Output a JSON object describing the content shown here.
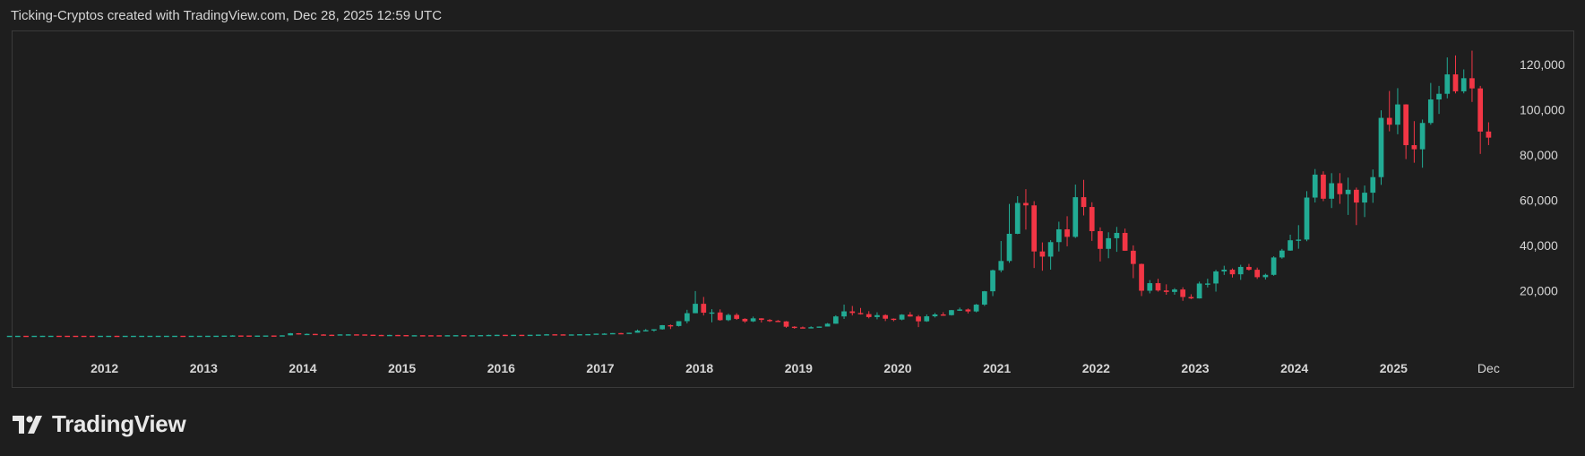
{
  "header": {
    "caption": "Ticking-Cryptos created with TradingView.com, Dec 28, 2025 12:59 UTC"
  },
  "brand": {
    "name": "TradingView"
  },
  "colors": {
    "background": "#1e1e1e",
    "up": "#22ab94",
    "down": "#f23645",
    "grid_text": "#d6d6d6",
    "border": "#3a3a3a"
  },
  "chart_data": {
    "type": "candlestick",
    "interval": "monthly",
    "ylim": [
      -8000,
      128000
    ],
    "y_ticks": [
      20000,
      40000,
      60000,
      80000,
      100000,
      120000
    ],
    "y_tick_labels": [
      "20,000",
      "40,000",
      "60,000",
      "80,000",
      "100,000",
      "120,000"
    ],
    "x_tick_labels": [
      "2012",
      "2013",
      "2014",
      "2015",
      "2016",
      "2017",
      "2018",
      "2019",
      "2020",
      "2021",
      "2022",
      "2023",
      "2024",
      "2025",
      "Dec"
    ],
    "x_start": "2011-01",
    "x_end": "2025-12",
    "candles": [
      [
        "2011-01",
        0.3,
        0.5,
        0.3,
        0.4
      ],
      [
        "2011-02",
        0.4,
        1.0,
        0.4,
        0.9
      ],
      [
        "2011-03",
        0.9,
        1.0,
        0.7,
        0.8
      ],
      [
        "2011-04",
        0.8,
        4.0,
        0.6,
        3.5
      ],
      [
        "2011-05",
        3.5,
        9.0,
        3.0,
        8.7
      ],
      [
        "2011-06",
        8.7,
        32,
        8.0,
        16
      ],
      [
        "2011-07",
        16,
        16,
        13,
        13
      ],
      [
        "2011-08",
        13,
        13,
        7,
        8
      ],
      [
        "2011-09",
        8,
        8,
        5,
        5
      ],
      [
        "2011-10",
        5,
        5,
        2,
        3.2
      ],
      [
        "2011-11",
        3.2,
        3.2,
        2,
        3
      ],
      [
        "2011-12",
        3,
        4.5,
        2.8,
        4.7
      ],
      [
        "2012-01",
        4.7,
        7,
        4.5,
        5.5
      ],
      [
        "2012-02",
        5.5,
        6,
        4.3,
        4.9
      ],
      [
        "2012-03",
        4.9,
        5.3,
        4.6,
        4.9
      ],
      [
        "2012-04",
        4.9,
        5.2,
        4.7,
        5.0
      ],
      [
        "2012-05",
        5.0,
        5.3,
        4.9,
        5.2
      ],
      [
        "2012-06",
        5.2,
        6.7,
        5.2,
        6.7
      ],
      [
        "2012-07",
        6.7,
        9.5,
        6.6,
        9.4
      ],
      [
        "2012-08",
        9.4,
        15,
        8,
        10
      ],
      [
        "2012-09",
        10,
        12.5,
        10,
        12.4
      ],
      [
        "2012-10",
        12.4,
        13,
        10,
        11.2
      ],
      [
        "2012-11",
        11.2,
        12.5,
        10,
        12.5
      ],
      [
        "2012-12",
        12.5,
        13.7,
        12.5,
        13.5
      ],
      [
        "2013-01",
        13.5,
        21,
        13,
        20.4
      ],
      [
        "2013-02",
        20.4,
        33,
        19,
        33
      ],
      [
        "2013-03",
        33,
        95,
        33,
        93
      ],
      [
        "2013-04",
        93,
        266,
        50,
        139
      ],
      [
        "2013-05",
        139,
        140,
        94,
        129
      ],
      [
        "2013-06",
        129,
        129,
        88,
        97
      ],
      [
        "2013-07",
        97,
        111,
        65,
        106
      ],
      [
        "2013-08",
        106,
        135,
        99,
        135
      ],
      [
        "2013-09",
        135,
        146,
        106,
        133
      ],
      [
        "2013-10",
        133,
        211,
        102,
        204
      ],
      [
        "2013-11",
        204,
        1242,
        204,
        1129
      ],
      [
        "2013-12",
        1129,
        1175,
        550,
        755
      ],
      [
        "2014-01",
        755,
        1000,
        750,
        838
      ],
      [
        "2014-02",
        838,
        860,
        425,
        573
      ],
      [
        "2014-03",
        573,
        720,
        438,
        457
      ],
      [
        "2014-04",
        457,
        550,
        340,
        448
      ],
      [
        "2014-05",
        448,
        630,
        420,
        628
      ],
      [
        "2014-06",
        628,
        680,
        550,
        640
      ],
      [
        "2014-07",
        640,
        650,
        566,
        589
      ],
      [
        "2014-08",
        589,
        597,
        464,
        478
      ],
      [
        "2014-09",
        478,
        494,
        375,
        387
      ],
      [
        "2014-10",
        387,
        413,
        275,
        338
      ],
      [
        "2014-11",
        338,
        455,
        315,
        378
      ],
      [
        "2014-12",
        378,
        389,
        310,
        320
      ],
      [
        "2015-01",
        320,
        320,
        170,
        217
      ],
      [
        "2015-02",
        217,
        264,
        212,
        254
      ],
      [
        "2015-03",
        254,
        300,
        238,
        244
      ],
      [
        "2015-04",
        244,
        264,
        218,
        236
      ],
      [
        "2015-05",
        236,
        247,
        228,
        230
      ],
      [
        "2015-06",
        230,
        268,
        220,
        263
      ],
      [
        "2015-07",
        263,
        316,
        254,
        284
      ],
      [
        "2015-08",
        284,
        285,
        199,
        230
      ],
      [
        "2015-09",
        230,
        245,
        225,
        236
      ],
      [
        "2015-10",
        236,
        333,
        235,
        314
      ],
      [
        "2015-11",
        314,
        495,
        314,
        378
      ],
      [
        "2015-12",
        378,
        465,
        349,
        431
      ],
      [
        "2016-01",
        431,
        462,
        354,
        368
      ],
      [
        "2016-02",
        368,
        443,
        366,
        437
      ],
      [
        "2016-03",
        437,
        439,
        401,
        416
      ],
      [
        "2016-04",
        416,
        466,
        414,
        448
      ],
      [
        "2016-05",
        448,
        550,
        443,
        531
      ],
      [
        "2016-06",
        531,
        778,
        531,
        673
      ],
      [
        "2016-07",
        673,
        704,
        604,
        624
      ],
      [
        "2016-08",
        624,
        626,
        533,
        573
      ],
      [
        "2016-09",
        573,
        613,
        567,
        608
      ],
      [
        "2016-10",
        608,
        737,
        607,
        701
      ],
      [
        "2016-11",
        701,
        756,
        685,
        742
      ],
      [
        "2016-12",
        742,
        973,
        740,
        963
      ],
      [
        "2017-01",
        963,
        1150,
        752,
        970
      ],
      [
        "2017-02",
        970,
        1200,
        912,
        1190
      ],
      [
        "2017-03",
        1190,
        1290,
        891,
        1080
      ],
      [
        "2017-04",
        1080,
        1350,
        1080,
        1350
      ],
      [
        "2017-05",
        1350,
        2760,
        1350,
        2300
      ],
      [
        "2017-06",
        2300,
        3000,
        2300,
        2480
      ],
      [
        "2017-07",
        2480,
        2920,
        1830,
        2875
      ],
      [
        "2017-08",
        2875,
        4760,
        2700,
        4700
      ],
      [
        "2017-09",
        4700,
        5000,
        3000,
        4340
      ],
      [
        "2017-10",
        4340,
        6470,
        4100,
        6470
      ],
      [
        "2017-11",
        6470,
        11500,
        5500,
        10000
      ],
      [
        "2017-12",
        10000,
        19800,
        10000,
        14160
      ],
      [
        "2018-01",
        14160,
        17200,
        9000,
        10220
      ],
      [
        "2018-02",
        10220,
        11800,
        6000,
        10330
      ],
      [
        "2018-03",
        10330,
        11700,
        6650,
        6930
      ],
      [
        "2018-04",
        6930,
        9800,
        6500,
        9240
      ],
      [
        "2018-05",
        9240,
        9990,
        7050,
        7500
      ],
      [
        "2018-06",
        7500,
        7760,
        5750,
        6390
      ],
      [
        "2018-07",
        6390,
        8500,
        6070,
        7730
      ],
      [
        "2018-08",
        7730,
        7760,
        5880,
        7030
      ],
      [
        "2018-09",
        7030,
        7400,
        6100,
        6630
      ],
      [
        "2018-10",
        6630,
        6990,
        6180,
        6370
      ],
      [
        "2018-11",
        6370,
        6540,
        3550,
        4020
      ],
      [
        "2018-12",
        4020,
        4240,
        3120,
        3740
      ],
      [
        "2019-01",
        3740,
        4110,
        3380,
        3460
      ],
      [
        "2019-02",
        3460,
        4200,
        3380,
        3810
      ],
      [
        "2019-03",
        3810,
        4120,
        3670,
        4100
      ],
      [
        "2019-04",
        4100,
        5640,
        4090,
        5350
      ],
      [
        "2019-05",
        5350,
        9090,
        5320,
        8570
      ],
      [
        "2019-06",
        8570,
        13800,
        7460,
        10820
      ],
      [
        "2019-07",
        10820,
        13200,
        9010,
        10080
      ],
      [
        "2019-08",
        10080,
        12300,
        9390,
        9600
      ],
      [
        "2019-09",
        9600,
        10900,
        7730,
        8290
      ],
      [
        "2019-10",
        8290,
        10400,
        7300,
        9150
      ],
      [
        "2019-11",
        9150,
        9510,
        6520,
        7570
      ],
      [
        "2019-12",
        7570,
        7700,
        6430,
        7190
      ],
      [
        "2020-01",
        7190,
        9560,
        6850,
        9350
      ],
      [
        "2020-02",
        9350,
        10500,
        8450,
        8540
      ],
      [
        "2020-03",
        8540,
        9190,
        3850,
        6410
      ],
      [
        "2020-04",
        6410,
        9460,
        6150,
        8630
      ],
      [
        "2020-05",
        8630,
        10070,
        8120,
        9450
      ],
      [
        "2020-06",
        9450,
        10430,
        8830,
        9140
      ],
      [
        "2020-07",
        9140,
        11450,
        8970,
        11350
      ],
      [
        "2020-08",
        11350,
        12470,
        10990,
        11650
      ],
      [
        "2020-09",
        11650,
        12080,
        9880,
        10780
      ],
      [
        "2020-10",
        10780,
        14100,
        10380,
        13800
      ],
      [
        "2020-11",
        13800,
        19860,
        13210,
        19700
      ],
      [
        "2020-12",
        19700,
        29300,
        17570,
        28990
      ],
      [
        "2021-01",
        28990,
        41950,
        28130,
        33110
      ],
      [
        "2021-02",
        33110,
        58350,
        32300,
        45140
      ],
      [
        "2021-03",
        45140,
        61790,
        45000,
        58790
      ],
      [
        "2021-04",
        58790,
        64900,
        47000,
        57720
      ],
      [
        "2021-05",
        57720,
        59590,
        30000,
        37330
      ],
      [
        "2021-06",
        37330,
        41330,
        28800,
        35040
      ],
      [
        "2021-07",
        35040,
        42320,
        29280,
        41460
      ],
      [
        "2021-08",
        41460,
        50500,
        37330,
        47130
      ],
      [
        "2021-09",
        47130,
        52920,
        39600,
        43790
      ],
      [
        "2021-10",
        43790,
        66930,
        43290,
        61350
      ],
      [
        "2021-11",
        61350,
        69000,
        53260,
        57000
      ],
      [
        "2021-12",
        57000,
        59100,
        42000,
        46310
      ],
      [
        "2022-01",
        46310,
        47990,
        32900,
        38470
      ],
      [
        "2022-02",
        38470,
        45820,
        34330,
        43190
      ],
      [
        "2022-03",
        43190,
        48190,
        37160,
        45540
      ],
      [
        "2022-04",
        45540,
        47440,
        37580,
        37650
      ],
      [
        "2022-05",
        37650,
        40010,
        25500,
        31800
      ],
      [
        "2022-06",
        31800,
        31950,
        17600,
        19940
      ],
      [
        "2022-07",
        19940,
        24660,
        18780,
        23300
      ],
      [
        "2022-08",
        23300,
        25200,
        19540,
        20050
      ],
      [
        "2022-09",
        20050,
        22790,
        18170,
        19420
      ],
      [
        "2022-10",
        19420,
        21090,
        18190,
        20490
      ],
      [
        "2022-11",
        20490,
        21470,
        15480,
        17170
      ],
      [
        "2022-12",
        17170,
        18390,
        16260,
        16540
      ],
      [
        "2023-01",
        16540,
        23960,
        16500,
        23130
      ],
      [
        "2023-02",
        23130,
        25250,
        21400,
        23150
      ],
      [
        "2023-03",
        23150,
        29190,
        19550,
        28480
      ],
      [
        "2023-04",
        28480,
        31000,
        26940,
        29250
      ],
      [
        "2023-05",
        29250,
        29820,
        25800,
        27220
      ],
      [
        "2023-06",
        27220,
        31430,
        24760,
        30480
      ],
      [
        "2023-07",
        30480,
        31820,
        28860,
        29230
      ],
      [
        "2023-08",
        29230,
        30200,
        25160,
        25940
      ],
      [
        "2023-09",
        25940,
        27490,
        24900,
        26970
      ],
      [
        "2023-10",
        26970,
        35200,
        26570,
        34660
      ],
      [
        "2023-11",
        34660,
        38450,
        34120,
        37720
      ],
      [
        "2023-12",
        37720,
        44730,
        37640,
        42280
      ],
      [
        "2024-01",
        42280,
        48970,
        38520,
        42580
      ],
      [
        "2024-02",
        42580,
        64000,
        41880,
        61180
      ],
      [
        "2024-03",
        61180,
        73800,
        59000,
        71330
      ],
      [
        "2024-04",
        71330,
        72800,
        59600,
        60670
      ],
      [
        "2024-05",
        60670,
        71980,
        56550,
        67530
      ],
      [
        "2024-06",
        67530,
        71980,
        58400,
        62680
      ],
      [
        "2024-07",
        62680,
        70000,
        53500,
        64630
      ],
      [
        "2024-08",
        64630,
        65600,
        49000,
        58980
      ],
      [
        "2024-09",
        58980,
        66500,
        52550,
        63330
      ],
      [
        "2024-10",
        63330,
        73620,
        58860,
        70220
      ],
      [
        "2024-11",
        70220,
        99800,
        66800,
        96450
      ],
      [
        "2024-12",
        96450,
        108350,
        90500,
        93430
      ],
      [
        "2025-01",
        93430,
        109600,
        89200,
        102400
      ],
      [
        "2025-02",
        102400,
        102500,
        78200,
        84370
      ],
      [
        "2025-03",
        84370,
        95000,
        76600,
        82550
      ],
      [
        "2025-04",
        82550,
        95700,
        74400,
        94200
      ],
      [
        "2025-05",
        94200,
        111900,
        93400,
        104600
      ],
      [
        "2025-06",
        104600,
        110600,
        98200,
        107100
      ],
      [
        "2025-07",
        107100,
        123200,
        105100,
        115700
      ],
      [
        "2025-08",
        115700,
        124100,
        107300,
        108200
      ],
      [
        "2025-09",
        108200,
        117900,
        107300,
        114000
      ],
      [
        "2025-10",
        114000,
        126200,
        103500,
        109500
      ],
      [
        "2025-11",
        109500,
        110600,
        80500,
        90400
      ],
      [
        "2025-12",
        90400,
        94500,
        84400,
        87700
      ]
    ]
  }
}
